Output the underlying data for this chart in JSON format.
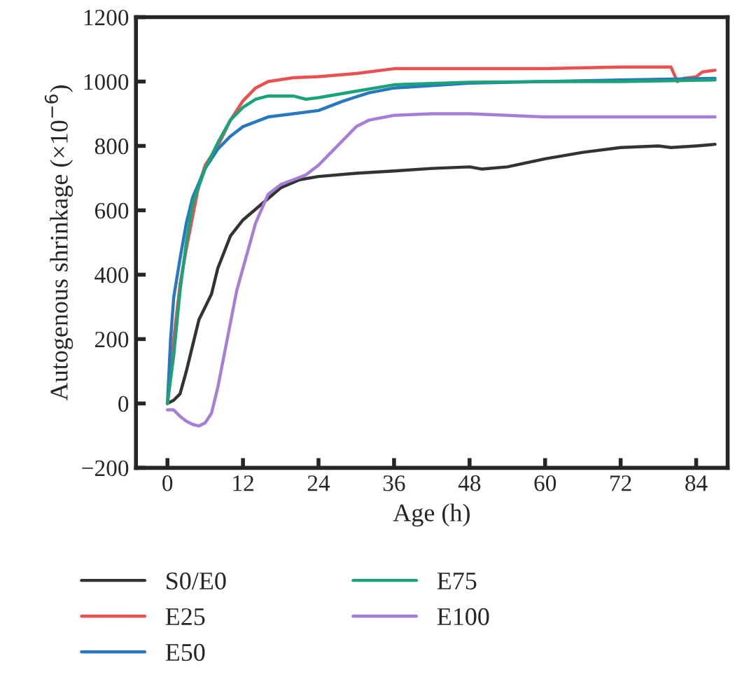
{
  "chart_data": {
    "type": "line",
    "xlabel": "Age (h)",
    "ylabel": "Autogenous shrinkage (×10$^{−6}$)",
    "xlim": [
      -5,
      89
    ],
    "xticks": [
      0,
      12,
      24,
      36,
      48,
      60,
      72,
      84
    ],
    "ylim": [
      -200,
      1200
    ],
    "yticks": [
      {
        "value": -200,
        "label": "−200"
      },
      0,
      200,
      400,
      600,
      800,
      1000,
      1200
    ],
    "grid": false,
    "legend": "bottom",
    "marker": "none",
    "line_style": "solid",
    "series": [
      {
        "name": "S0/E0",
        "color": "#333333",
        "x": [
          0,
          1,
          2,
          3,
          4,
          5,
          6,
          7,
          8,
          9,
          10,
          12,
          15,
          18,
          21,
          24,
          30,
          36,
          42,
          48,
          50,
          54,
          60,
          66,
          72,
          78,
          80,
          84,
          87
        ],
        "values": [
          0,
          10,
          30,
          100,
          180,
          260,
          300,
          340,
          420,
          470,
          520,
          570,
          620,
          670,
          695,
          705,
          715,
          722,
          730,
          735,
          728,
          735,
          760,
          780,
          795,
          800,
          795,
          800,
          805
        ]
      },
      {
        "name": "E25",
        "color": "#e8514f",
        "x": [
          0,
          1,
          2,
          3,
          4,
          5,
          6,
          8,
          10,
          12,
          14,
          16,
          20,
          24,
          30,
          36,
          48,
          60,
          72,
          80,
          81,
          82,
          84,
          85,
          87
        ],
        "values": [
          0,
          200,
          370,
          480,
          580,
          680,
          740,
          800,
          880,
          940,
          980,
          1000,
          1012,
          1015,
          1025,
          1040,
          1040,
          1040,
          1045,
          1045,
          1000,
          1010,
          1015,
          1030,
          1035
        ]
      },
      {
        "name": "E50",
        "color": "#2878c0",
        "x": [
          0,
          0.5,
          1,
          2,
          3,
          4,
          6,
          8,
          10,
          12,
          16,
          20,
          24,
          28,
          32,
          36,
          48,
          60,
          72,
          87
        ],
        "values": [
          0,
          200,
          330,
          450,
          560,
          640,
          730,
          790,
          830,
          860,
          890,
          900,
          910,
          940,
          965,
          980,
          995,
          1000,
          1005,
          1010
        ]
      },
      {
        "name": "E75",
        "color": "#1aa37a",
        "x": [
          0,
          1,
          2,
          3,
          4,
          6,
          8,
          10,
          12,
          14,
          16,
          20,
          22,
          24,
          30,
          36,
          48,
          60,
          72,
          87
        ],
        "values": [
          0,
          150,
          350,
          500,
          620,
          730,
          810,
          880,
          920,
          945,
          955,
          955,
          945,
          950,
          970,
          990,
          998,
          1000,
          1000,
          1005
        ]
      },
      {
        "name": "E100",
        "color": "#a77ed6",
        "x": [
          0,
          1,
          2,
          3,
          4,
          5,
          6,
          7,
          8,
          9,
          10,
          11,
          12,
          14,
          16,
          18,
          20,
          22,
          24,
          26,
          28,
          30,
          32,
          36,
          42,
          48,
          54,
          60,
          72,
          87
        ],
        "values": [
          -20,
          -20,
          -40,
          -55,
          -65,
          -70,
          -60,
          -30,
          50,
          150,
          250,
          350,
          420,
          560,
          650,
          680,
          695,
          710,
          740,
          780,
          820,
          860,
          880,
          895,
          900,
          900,
          895,
          890,
          890,
          890
        ]
      }
    ]
  }
}
